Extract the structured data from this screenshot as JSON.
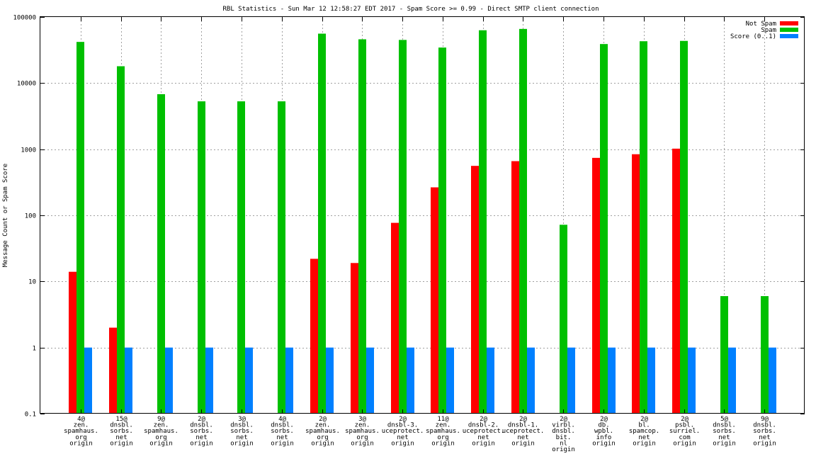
{
  "chart_data": {
    "type": "bar",
    "title": "RBL Statistics - Sun Mar 12 12:58:27 EDT 2017 - Spam Score >= 0.99 - Direct SMTP client connection",
    "xlabel": "",
    "ylabel": "Message Count or Spam Score",
    "yscale": "log",
    "ylim": [
      0.1,
      100000
    ],
    "yticks": [
      "0.1",
      "1",
      "10",
      "100",
      "1000",
      "10000",
      "100000"
    ],
    "grid": "dashed",
    "legend_position": "top-right",
    "categories": [
      [
        "4@",
        "zen.",
        "spamhaus.",
        "org",
        "origin"
      ],
      [
        "15@",
        "dnsbl.",
        "sorbs.",
        "net",
        "origin"
      ],
      [
        "9@",
        "zen.",
        "spamhaus.",
        "org",
        "origin"
      ],
      [
        "2@",
        "dnsbl.",
        "sorbs.",
        "net",
        "origin"
      ],
      [
        "3@",
        "dnsbl.",
        "sorbs.",
        "net",
        "origin"
      ],
      [
        "4@",
        "dnsbl.",
        "sorbs.",
        "net",
        "origin"
      ],
      [
        "2@",
        "zen.",
        "spamhaus.",
        "org",
        "origin"
      ],
      [
        "3@",
        "zen.",
        "spamhaus.",
        "org",
        "origin"
      ],
      [
        "2@",
        "dnsbl-3.",
        "uceprotect.",
        "net",
        "origin"
      ],
      [
        "11@",
        "zen.",
        "spamhaus.",
        "org",
        "origin"
      ],
      [
        "2@",
        "dnsbl-2.",
        "uceprotect.",
        "net",
        "origin"
      ],
      [
        "2@",
        "dnsbl-1.",
        "uceprotect.",
        "net",
        "origin"
      ],
      [
        "2@",
        "virbl.",
        "dnsbl.",
        "bit.",
        "nl",
        "origin"
      ],
      [
        "2@",
        "db.",
        "wpbl.",
        "info",
        "origin"
      ],
      [
        "2@",
        "bl.",
        "spamcop.",
        "net",
        "origin"
      ],
      [
        "2@",
        "psbl.",
        "surriel.",
        "com",
        "origin"
      ],
      [
        "5@",
        "dnsbl.",
        "sorbs.",
        "net",
        "origin"
      ],
      [
        "9@",
        "dnsbl.",
        "sorbs.",
        "net",
        "origin"
      ]
    ],
    "series": [
      {
        "name": "Not Spam",
        "color": "#ff0000",
        "values": [
          14,
          2,
          null,
          null,
          null,
          null,
          22,
          19,
          77,
          265,
          560,
          660,
          null,
          740,
          840,
          1020,
          null,
          null
        ]
      },
      {
        "name": "Spam",
        "color": "#00c000",
        "values": [
          42000,
          18000,
          6800,
          5300,
          5300,
          5300,
          56000,
          46000,
          45000,
          34500,
          63000,
          66000,
          72,
          39000,
          43000,
          43500,
          6,
          6
        ]
      },
      {
        "name": "Score (0..1)",
        "color": "#0080ff",
        "values": [
          1,
          1,
          1,
          1,
          1,
          1,
          1,
          1,
          1,
          1,
          1,
          1,
          1,
          1,
          1,
          1,
          1,
          1
        ]
      }
    ]
  }
}
